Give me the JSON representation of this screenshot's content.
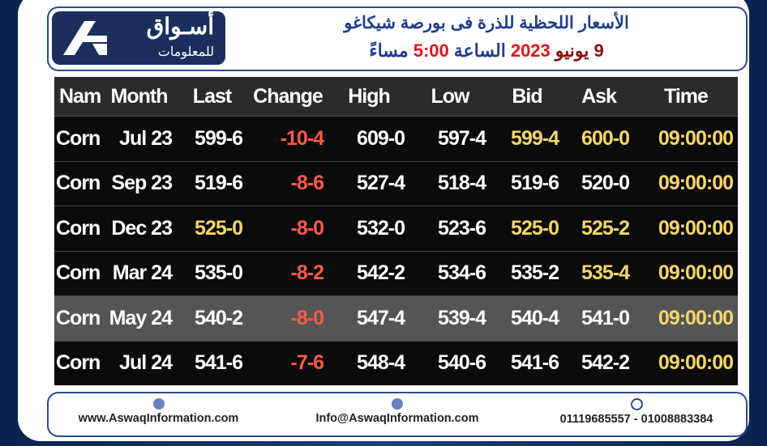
{
  "header": {
    "logo_title": "أسـواق",
    "logo_subtitle": "للمعلومات",
    "title": "الأسعار اللحظية للذرة فى بورصة شيكاغو",
    "subtitle_parts": [
      "9 يونيو",
      "2023",
      "الساعة",
      "5:00",
      "مساءً"
    ]
  },
  "table": {
    "columns": [
      "Name",
      "Month",
      "Last",
      "Change",
      "High",
      "Low",
      "Bid",
      "Ask",
      "Time"
    ],
    "rows": [
      [
        "Corn",
        "Jul 23",
        "599-6",
        "-10-4",
        "609-0",
        "597-4",
        "599-4",
        "600-0",
        "09:00:00"
      ],
      [
        "Corn",
        "Sep 23",
        "519-6",
        "-8-6",
        "527-4",
        "518-4",
        "519-6",
        "520-0",
        "09:00:00"
      ],
      [
        "Corn",
        "Dec 23",
        "525-0",
        "-8-0",
        "532-0",
        "523-6",
        "525-0",
        "525-2",
        "09:00:00"
      ],
      [
        "Corn",
        "Mar 24",
        "535-0",
        "-8-2",
        "542-2",
        "534-6",
        "535-2",
        "535-4",
        "09:00:00"
      ],
      [
        "Corn",
        "May 24",
        "540-2",
        "-8-0",
        "547-4",
        "539-4",
        "540-4",
        "541-0",
        "09:00:00"
      ],
      [
        "Corn",
        "Jul 24",
        "541-6",
        "-7-6",
        "548-4",
        "540-6",
        "541-6",
        "542-2",
        "09:00:00"
      ]
    ]
  },
  "footer": {
    "website": "www.AswaqInformation.com",
    "email": "Info@AswaqInformation.com",
    "phones": "01119685557 - 01008883384"
  }
}
